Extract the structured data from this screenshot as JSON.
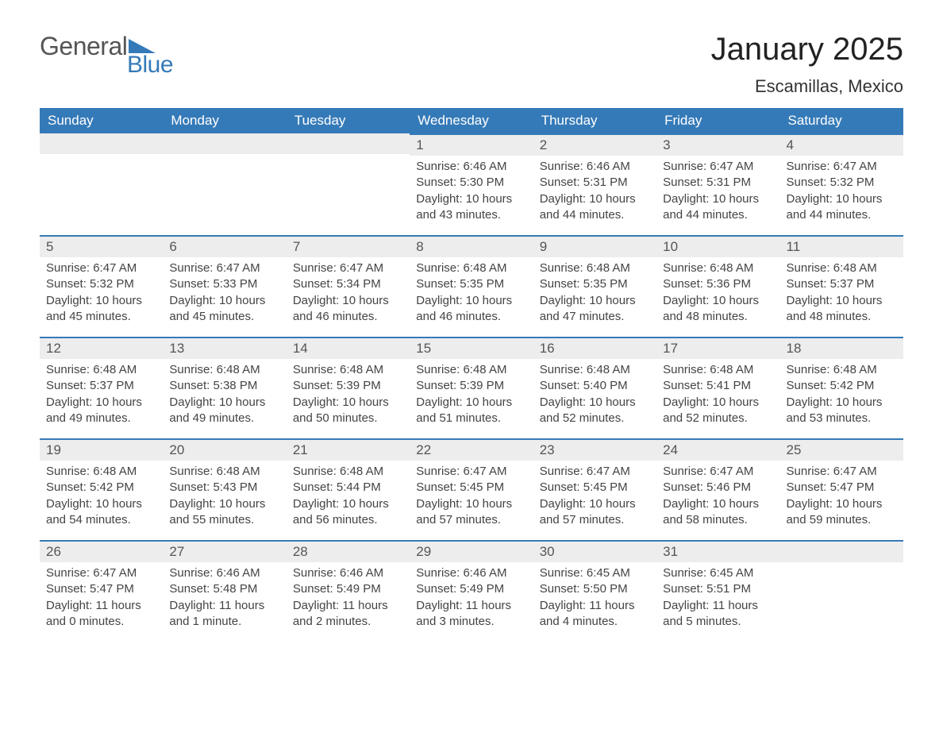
{
  "logo": {
    "general": "General",
    "blue": "Blue",
    "brand_color": "#357ab8",
    "text_color": "#555555"
  },
  "header": {
    "month_title": "January 2025",
    "location": "Escamillas, Mexico"
  },
  "style": {
    "header_bg": "#357ab8",
    "header_text": "#ffffff",
    "daynum_bg": "#ededed",
    "week_border_color": "#357ab8",
    "body_text": "#444444",
    "daynum_text": "#555555",
    "font_family": "Arial",
    "th_fontsize": 17,
    "daynum_fontsize": 17,
    "body_fontsize": 15,
    "title_fontsize": 40,
    "location_fontsize": 22
  },
  "day_labels": [
    "Sunday",
    "Monday",
    "Tuesday",
    "Wednesday",
    "Thursday",
    "Friday",
    "Saturday"
  ],
  "weeks": [
    [
      {
        "n": "",
        "sun": "",
        "set": "",
        "dl": ""
      },
      {
        "n": "",
        "sun": "",
        "set": "",
        "dl": ""
      },
      {
        "n": "",
        "sun": "",
        "set": "",
        "dl": ""
      },
      {
        "n": "1",
        "sun": "Sunrise: 6:46 AM",
        "set": "Sunset: 5:30 PM",
        "dl": "Daylight: 10 hours and 43 minutes."
      },
      {
        "n": "2",
        "sun": "Sunrise: 6:46 AM",
        "set": "Sunset: 5:31 PM",
        "dl": "Daylight: 10 hours and 44 minutes."
      },
      {
        "n": "3",
        "sun": "Sunrise: 6:47 AM",
        "set": "Sunset: 5:31 PM",
        "dl": "Daylight: 10 hours and 44 minutes."
      },
      {
        "n": "4",
        "sun": "Sunrise: 6:47 AM",
        "set": "Sunset: 5:32 PM",
        "dl": "Daylight: 10 hours and 44 minutes."
      }
    ],
    [
      {
        "n": "5",
        "sun": "Sunrise: 6:47 AM",
        "set": "Sunset: 5:32 PM",
        "dl": "Daylight: 10 hours and 45 minutes."
      },
      {
        "n": "6",
        "sun": "Sunrise: 6:47 AM",
        "set": "Sunset: 5:33 PM",
        "dl": "Daylight: 10 hours and 45 minutes."
      },
      {
        "n": "7",
        "sun": "Sunrise: 6:47 AM",
        "set": "Sunset: 5:34 PM",
        "dl": "Daylight: 10 hours and 46 minutes."
      },
      {
        "n": "8",
        "sun": "Sunrise: 6:48 AM",
        "set": "Sunset: 5:35 PM",
        "dl": "Daylight: 10 hours and 46 minutes."
      },
      {
        "n": "9",
        "sun": "Sunrise: 6:48 AM",
        "set": "Sunset: 5:35 PM",
        "dl": "Daylight: 10 hours and 47 minutes."
      },
      {
        "n": "10",
        "sun": "Sunrise: 6:48 AM",
        "set": "Sunset: 5:36 PM",
        "dl": "Daylight: 10 hours and 48 minutes."
      },
      {
        "n": "11",
        "sun": "Sunrise: 6:48 AM",
        "set": "Sunset: 5:37 PM",
        "dl": "Daylight: 10 hours and 48 minutes."
      }
    ],
    [
      {
        "n": "12",
        "sun": "Sunrise: 6:48 AM",
        "set": "Sunset: 5:37 PM",
        "dl": "Daylight: 10 hours and 49 minutes."
      },
      {
        "n": "13",
        "sun": "Sunrise: 6:48 AM",
        "set": "Sunset: 5:38 PM",
        "dl": "Daylight: 10 hours and 49 minutes."
      },
      {
        "n": "14",
        "sun": "Sunrise: 6:48 AM",
        "set": "Sunset: 5:39 PM",
        "dl": "Daylight: 10 hours and 50 minutes."
      },
      {
        "n": "15",
        "sun": "Sunrise: 6:48 AM",
        "set": "Sunset: 5:39 PM",
        "dl": "Daylight: 10 hours and 51 minutes."
      },
      {
        "n": "16",
        "sun": "Sunrise: 6:48 AM",
        "set": "Sunset: 5:40 PM",
        "dl": "Daylight: 10 hours and 52 minutes."
      },
      {
        "n": "17",
        "sun": "Sunrise: 6:48 AM",
        "set": "Sunset: 5:41 PM",
        "dl": "Daylight: 10 hours and 52 minutes."
      },
      {
        "n": "18",
        "sun": "Sunrise: 6:48 AM",
        "set": "Sunset: 5:42 PM",
        "dl": "Daylight: 10 hours and 53 minutes."
      }
    ],
    [
      {
        "n": "19",
        "sun": "Sunrise: 6:48 AM",
        "set": "Sunset: 5:42 PM",
        "dl": "Daylight: 10 hours and 54 minutes."
      },
      {
        "n": "20",
        "sun": "Sunrise: 6:48 AM",
        "set": "Sunset: 5:43 PM",
        "dl": "Daylight: 10 hours and 55 minutes."
      },
      {
        "n": "21",
        "sun": "Sunrise: 6:48 AM",
        "set": "Sunset: 5:44 PM",
        "dl": "Daylight: 10 hours and 56 minutes."
      },
      {
        "n": "22",
        "sun": "Sunrise: 6:47 AM",
        "set": "Sunset: 5:45 PM",
        "dl": "Daylight: 10 hours and 57 minutes."
      },
      {
        "n": "23",
        "sun": "Sunrise: 6:47 AM",
        "set": "Sunset: 5:45 PM",
        "dl": "Daylight: 10 hours and 57 minutes."
      },
      {
        "n": "24",
        "sun": "Sunrise: 6:47 AM",
        "set": "Sunset: 5:46 PM",
        "dl": "Daylight: 10 hours and 58 minutes."
      },
      {
        "n": "25",
        "sun": "Sunrise: 6:47 AM",
        "set": "Sunset: 5:47 PM",
        "dl": "Daylight: 10 hours and 59 minutes."
      }
    ],
    [
      {
        "n": "26",
        "sun": "Sunrise: 6:47 AM",
        "set": "Sunset: 5:47 PM",
        "dl": "Daylight: 11 hours and 0 minutes."
      },
      {
        "n": "27",
        "sun": "Sunrise: 6:46 AM",
        "set": "Sunset: 5:48 PM",
        "dl": "Daylight: 11 hours and 1 minute."
      },
      {
        "n": "28",
        "sun": "Sunrise: 6:46 AM",
        "set": "Sunset: 5:49 PM",
        "dl": "Daylight: 11 hours and 2 minutes."
      },
      {
        "n": "29",
        "sun": "Sunrise: 6:46 AM",
        "set": "Sunset: 5:49 PM",
        "dl": "Daylight: 11 hours and 3 minutes."
      },
      {
        "n": "30",
        "sun": "Sunrise: 6:45 AM",
        "set": "Sunset: 5:50 PM",
        "dl": "Daylight: 11 hours and 4 minutes."
      },
      {
        "n": "31",
        "sun": "Sunrise: 6:45 AM",
        "set": "Sunset: 5:51 PM",
        "dl": "Daylight: 11 hours and 5 minutes."
      },
      {
        "n": "",
        "sun": "",
        "set": "",
        "dl": ""
      }
    ]
  ]
}
